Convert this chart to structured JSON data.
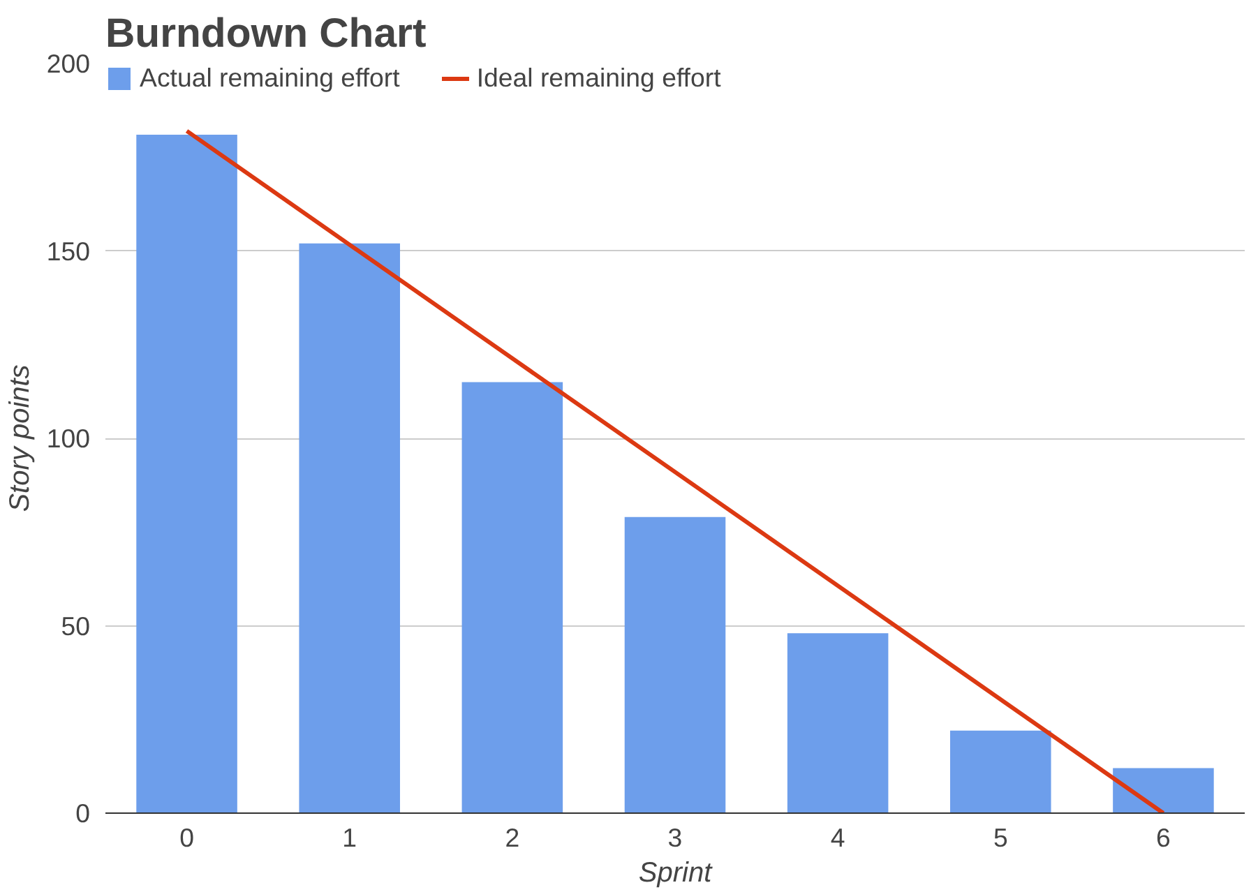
{
  "chart_data": {
    "type": "bar",
    "title": "Burndown Chart",
    "xlabel": "Sprint",
    "ylabel": "Story points",
    "categories": [
      "0",
      "1",
      "2",
      "3",
      "4",
      "5",
      "6"
    ],
    "series": [
      {
        "name": "Actual remaining effort",
        "color": "#6d9eeb",
        "values": [
          181,
          152,
          115,
          79,
          48,
          22,
          12
        ]
      },
      {
        "name": "Ideal remaining effort",
        "type": "line",
        "color": "#dc3912",
        "x": [
          "0",
          "6"
        ],
        "values": [
          182,
          0
        ]
      }
    ],
    "ylim": [
      0,
      200
    ],
    "yticks": [
      0,
      50,
      100,
      150,
      200
    ],
    "grid": "y",
    "legend": "top left"
  }
}
